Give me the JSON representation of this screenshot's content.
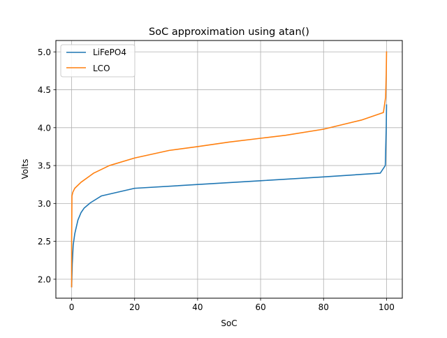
{
  "chart_data": {
    "type": "line",
    "title": "SoC approximation using atan()",
    "xlabel": "SoC",
    "ylabel": "Volts",
    "xlim": [
      -5,
      105
    ],
    "ylim": [
      1.75,
      5.15
    ],
    "xticks": [
      0,
      20,
      40,
      60,
      80,
      100
    ],
    "yticks": [
      2.0,
      2.5,
      3.0,
      3.5,
      4.0,
      4.5,
      5.0
    ],
    "xtick_labels": [
      "0",
      "20",
      "40",
      "60",
      "80",
      "100"
    ],
    "ytick_labels": [
      "2.0",
      "2.5",
      "3.0",
      "3.5",
      "4.0",
      "4.5",
      "5.0"
    ],
    "grid": true,
    "legend": "top-left",
    "series": [
      {
        "name": "LiFePO4",
        "color": "#1f77b4",
        "x": [
          0,
          0.2,
          0.5,
          1.0,
          2.0,
          3.0,
          4.0,
          6.0,
          9.5,
          20.0,
          40.0,
          60.0,
          80.0,
          98.0,
          99.6,
          99.9,
          100.0
        ],
        "y": [
          1.9,
          2.2,
          2.45,
          2.6,
          2.78,
          2.88,
          2.94,
          3.01,
          3.1,
          3.2,
          3.25,
          3.3,
          3.35,
          3.4,
          3.5,
          4.0,
          4.3
        ]
      },
      {
        "name": "LCO",
        "color": "#ff7f0e",
        "x": [
          0,
          0,
          0.1,
          0.4,
          1.0,
          3.0,
          7.0,
          12.0,
          20.0,
          31.0,
          40.0,
          50.0,
          60.0,
          68.0,
          80.0,
          84.0,
          92.0,
          99.0,
          99.7,
          99.9,
          100.0
        ],
        "y": [
          1.9,
          2.5,
          3.1,
          3.15,
          3.2,
          3.28,
          3.4,
          3.5,
          3.6,
          3.7,
          3.75,
          3.81,
          3.86,
          3.9,
          3.98,
          4.02,
          4.1,
          4.2,
          4.4,
          4.7,
          5.0
        ]
      }
    ]
  }
}
